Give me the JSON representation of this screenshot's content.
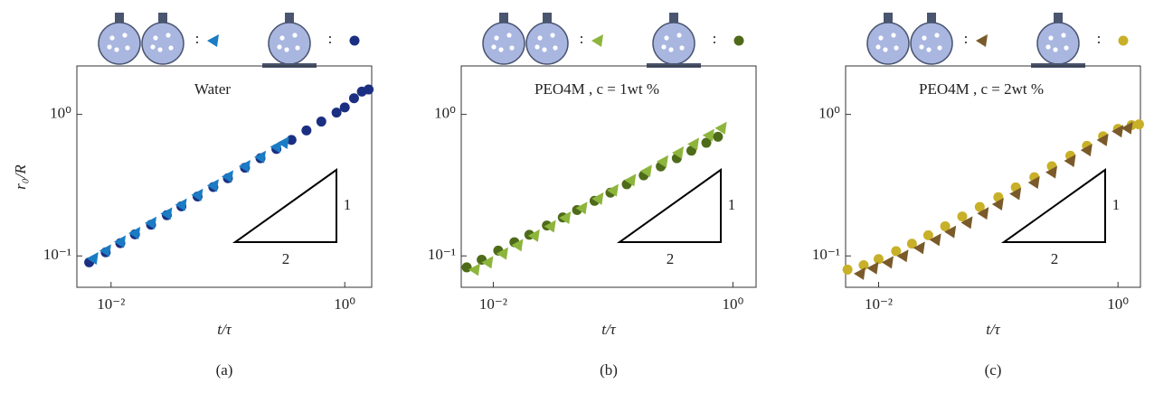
{
  "chart_data": [
    {
      "type": "scatter",
      "title": "Water",
      "title_color": "#1f3f9e",
      "x_label": "t/τ",
      "y_label": "r₀/R",
      "caption": "(a)",
      "xscale": "log",
      "yscale": "log",
      "xlim": [
        0.0051,
        1.7
      ],
      "ylim": [
        0.06,
        2.2
      ],
      "xticks": [
        {
          "value": 0.01,
          "label": "10⁻²"
        },
        {
          "value": 1,
          "label": "10⁰"
        }
      ],
      "yticks": [
        {
          "value": 0.1,
          "label": "10⁻¹"
        },
        {
          "value": 1,
          "label": "10⁰"
        }
      ],
      "legend_separator": ":",
      "slope_labels": [
        "1",
        "2"
      ],
      "series": [
        {
          "marker": "triangle",
          "color": "#1a7cc4",
          "x": [
            0.007,
            0.009,
            0.012,
            0.016,
            0.022,
            0.03,
            0.04,
            0.055,
            0.075,
            0.1,
            0.14,
            0.19,
            0.26,
            0.3
          ],
          "values": [
            0.096,
            0.109,
            0.126,
            0.145,
            0.171,
            0.199,
            0.23,
            0.27,
            0.315,
            0.364,
            0.43,
            0.5,
            0.59,
            0.63
          ]
        },
        {
          "marker": "circle",
          "color": "#1b2f82",
          "x": [
            0.0065,
            0.009,
            0.012,
            0.016,
            0.022,
            0.03,
            0.04,
            0.055,
            0.075,
            0.1,
            0.14,
            0.19,
            0.26,
            0.35,
            0.47,
            0.63,
            0.85,
            1.0,
            1.2,
            1.4,
            1.6
          ],
          "values": [
            0.09,
            0.106,
            0.123,
            0.142,
            0.166,
            0.194,
            0.224,
            0.263,
            0.307,
            0.354,
            0.42,
            0.49,
            0.57,
            0.66,
            0.77,
            0.89,
            1.03,
            1.12,
            1.3,
            1.45,
            1.5
          ]
        }
      ]
    },
    {
      "type": "scatter",
      "title": "PEO4M ,  c = 1wt %",
      "title_color": "#5a7a1e",
      "x_label": "t/τ",
      "caption": "(b)",
      "xscale": "log",
      "yscale": "log",
      "xlim": [
        0.0054,
        1.56
      ],
      "ylim": [
        0.06,
        2.2
      ],
      "xticks": [
        {
          "value": 0.01,
          "label": "10⁻²"
        },
        {
          "value": 1,
          "label": "10⁰"
        }
      ],
      "yticks": [
        {
          "value": 0.1,
          "label": "10⁻¹"
        },
        {
          "value": 1,
          "label": "10⁰"
        }
      ],
      "legend_separator": ":",
      "slope_labels": [
        "1",
        "2"
      ],
      "series": [
        {
          "marker": "triangle",
          "color": "#8db53c",
          "x": [
            0.007,
            0.009,
            0.012,
            0.016,
            0.022,
            0.03,
            0.04,
            0.055,
            0.075,
            0.1,
            0.14,
            0.19,
            0.26,
            0.35,
            0.47,
            0.63,
            0.8
          ],
          "values": [
            0.08,
            0.09,
            0.104,
            0.119,
            0.139,
            0.162,
            0.186,
            0.218,
            0.254,
            0.291,
            0.343,
            0.398,
            0.465,
            0.536,
            0.618,
            0.713,
            0.8
          ]
        },
        {
          "marker": "circle",
          "color": "#4e6b1a",
          "x": [
            0.006,
            0.008,
            0.011,
            0.015,
            0.02,
            0.028,
            0.038,
            0.05,
            0.07,
            0.095,
            0.13,
            0.18,
            0.25,
            0.34,
            0.45,
            0.6,
            0.75
          ],
          "values": [
            0.083,
            0.094,
            0.109,
            0.125,
            0.141,
            0.164,
            0.187,
            0.211,
            0.245,
            0.28,
            0.321,
            0.371,
            0.429,
            0.49,
            0.554,
            0.63,
            0.695
          ]
        }
      ]
    },
    {
      "type": "scatter",
      "title": "PEO4M ,  c = 2wt %",
      "title_color": "#c4ac24",
      "x_label": "t/τ",
      "caption": "(c)",
      "xscale": "log",
      "yscale": "log",
      "xlim": [
        0.0053,
        1.54
      ],
      "ylim": [
        0.06,
        2.2
      ],
      "xticks": [
        {
          "value": 0.01,
          "label": "10⁻²"
        },
        {
          "value": 1,
          "label": "10⁰"
        }
      ],
      "yticks": [
        {
          "value": 0.1,
          "label": "10⁻¹"
        },
        {
          "value": 1,
          "label": "10⁰"
        }
      ],
      "legend_separator": ":",
      "slope_labels": [
        "1",
        "2"
      ],
      "series": [
        {
          "marker": "triangle",
          "color": "#7a5a2a",
          "x": [
            0.007,
            0.009,
            0.012,
            0.016,
            0.022,
            0.03,
            0.04,
            0.055,
            0.075,
            0.1,
            0.14,
            0.2,
            0.28,
            0.4,
            0.55,
            0.75,
            1.0,
            1.2
          ],
          "values": [
            0.075,
            0.082,
            0.09,
            0.1,
            0.114,
            0.13,
            0.148,
            0.172,
            0.2,
            0.232,
            0.275,
            0.33,
            0.39,
            0.47,
            0.56,
            0.66,
            0.76,
            0.8
          ]
        },
        {
          "marker": "circle",
          "color": "#c8b028",
          "x": [
            0.0055,
            0.0075,
            0.01,
            0.014,
            0.019,
            0.026,
            0.036,
            0.05,
            0.07,
            0.1,
            0.14,
            0.2,
            0.28,
            0.4,
            0.55,
            0.75,
            1.0,
            1.3,
            1.5
          ],
          "values": [
            0.08,
            0.086,
            0.095,
            0.108,
            0.122,
            0.14,
            0.162,
            0.19,
            0.222,
            0.26,
            0.305,
            0.36,
            0.43,
            0.51,
            0.6,
            0.7,
            0.79,
            0.84,
            0.85
          ]
        }
      ]
    }
  ]
}
